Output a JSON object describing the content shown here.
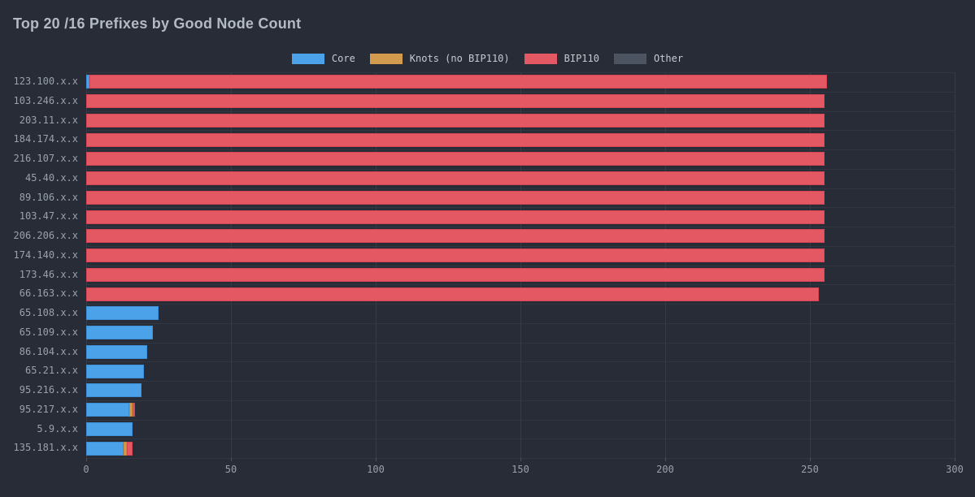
{
  "title": "Top 20 /16 Prefixes by Good Node Count",
  "colors": {
    "background": "#272c36",
    "title_text": "#b4bac4",
    "axis_text": "#9aa1ac",
    "legend_text": "#c6cad0",
    "grid_vertical": "#363c47",
    "grid_horizontal": "#303642",
    "core": "#4ba2e8",
    "core_border": "#3d90d8",
    "knots": "#d39b4d",
    "knots_border": "#c38937",
    "bip110": "#e35863",
    "bip110_border": "#d54554",
    "other": "#4c5361",
    "other_border": "#434a57"
  },
  "legend": {
    "position": "top",
    "items": [
      "Core",
      "Knots (no BIP110)",
      "BIP110",
      "Other"
    ]
  },
  "chart_data": {
    "type": "bar",
    "orientation": "horizontal",
    "stacked": true,
    "title": "Top 20 /16 Prefixes by Good Node Count",
    "xlabel": "",
    "ylabel": "",
    "xlim": [
      0,
      300
    ],
    "xticks": [
      0,
      50,
      100,
      150,
      200,
      250,
      300
    ],
    "grid": true,
    "legend_position": "top",
    "categories": [
      "123.100.x.x",
      "103.246.x.x",
      "203.11.x.x",
      "184.174.x.x",
      "216.107.x.x",
      "45.40.x.x",
      "89.106.x.x",
      "103.47.x.x",
      "206.206.x.x",
      "174.140.x.x",
      "173.46.x.x",
      "66.163.x.x",
      "65.108.x.x",
      "65.109.x.x",
      "86.104.x.x",
      "65.21.x.x",
      "95.216.x.x",
      "95.217.x.x",
      "5.9.x.x",
      "135.181.x.x"
    ],
    "series": [
      {
        "name": "Core",
        "color_key": "core",
        "values": [
          1,
          0,
          0,
          0,
          0,
          0,
          0,
          0,
          0,
          0,
          0,
          0,
          25,
          23,
          21,
          20,
          19,
          15,
          16,
          13
        ]
      },
      {
        "name": "Knots (no BIP110)",
        "color_key": "knots",
        "values": [
          0,
          0,
          0,
          0,
          0,
          0,
          0,
          0,
          0,
          0,
          0,
          0,
          0,
          0,
          0,
          0,
          0,
          1,
          0,
          1
        ]
      },
      {
        "name": "BIP110",
        "color_key": "bip110",
        "values": [
          255,
          255,
          255,
          255,
          255,
          255,
          255,
          255,
          255,
          255,
          255,
          253,
          0,
          0,
          0,
          0,
          0,
          1,
          0,
          2
        ]
      },
      {
        "name": "Other",
        "color_key": "other",
        "values": [
          0,
          0,
          0,
          0,
          0,
          0,
          0,
          0,
          0,
          0,
          0,
          0,
          0,
          0,
          0,
          0,
          0,
          0,
          0,
          0
        ]
      }
    ]
  }
}
